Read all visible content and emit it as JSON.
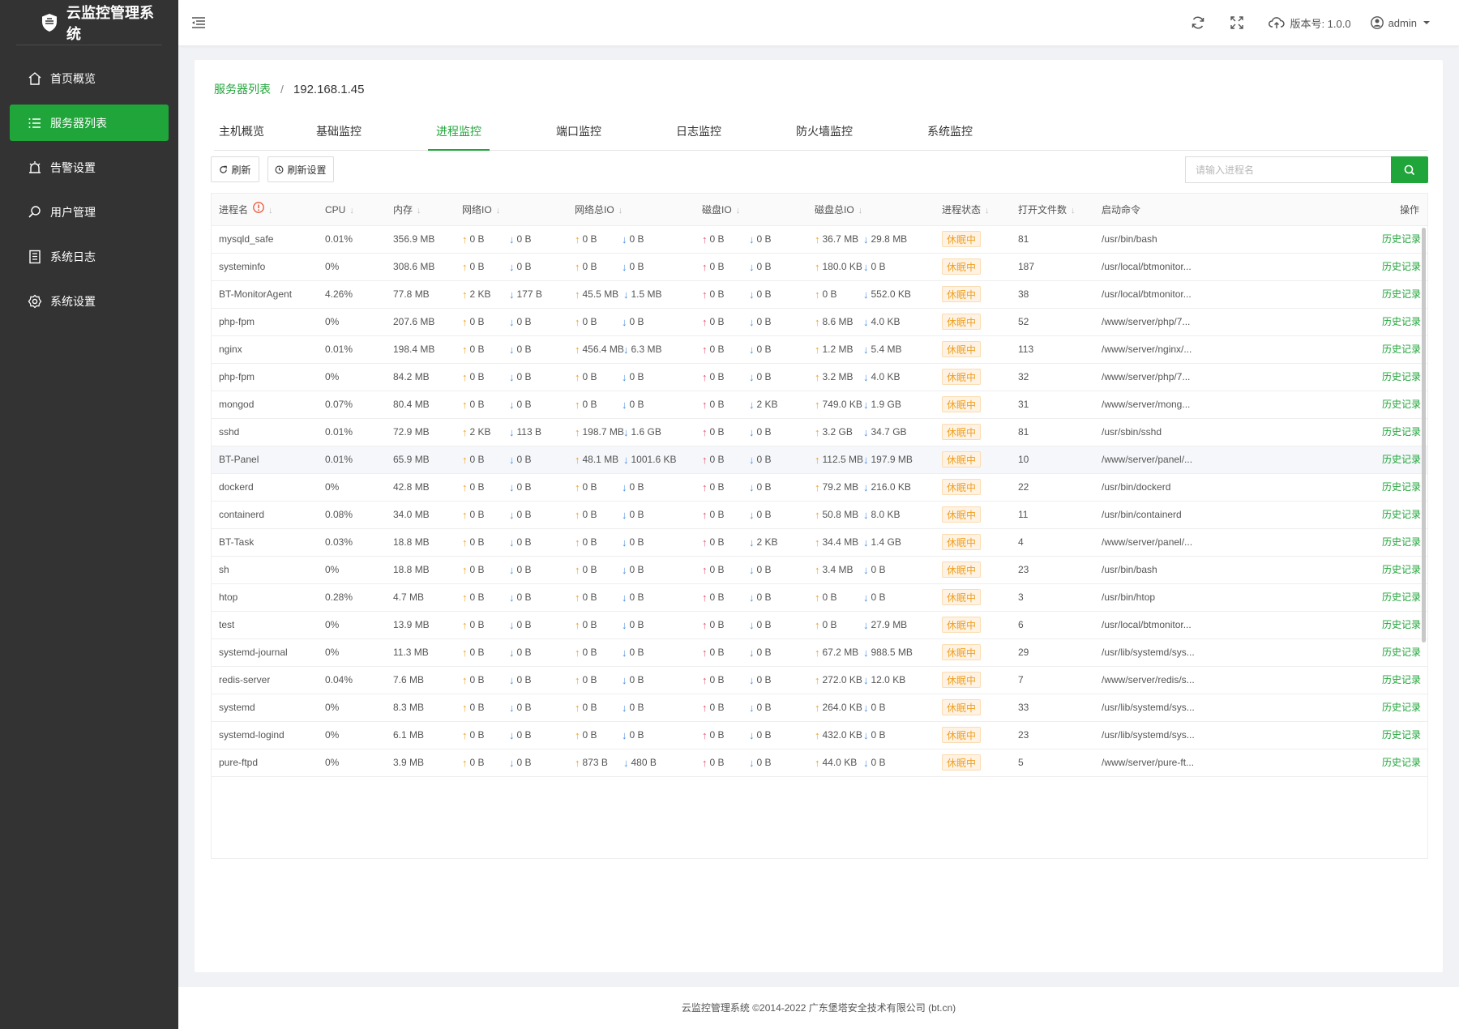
{
  "app": {
    "title": "云监控管理系统"
  },
  "sidebar": {
    "items": [
      {
        "label": "首页概览",
        "icon": "home-icon",
        "active": false
      },
      {
        "label": "服务器列表",
        "icon": "list-icon",
        "active": true
      },
      {
        "label": "告警设置",
        "icon": "alarm-icon",
        "active": false
      },
      {
        "label": "用户管理",
        "icon": "search-user-icon",
        "active": false
      },
      {
        "label": "系统日志",
        "icon": "log-icon",
        "active": false
      },
      {
        "label": "系统设置",
        "icon": "gear-icon",
        "active": false
      }
    ]
  },
  "header": {
    "version_label": "版本号: 1.0.0",
    "user": "admin"
  },
  "breadcrumb": {
    "parent": "服务器列表",
    "separator": "/",
    "current": "192.168.1.45"
  },
  "tabs": [
    {
      "label": "主机概览",
      "active": false
    },
    {
      "label": "基础监控",
      "active": false
    },
    {
      "label": "进程监控",
      "active": true
    },
    {
      "label": "端口监控",
      "active": false
    },
    {
      "label": "日志监控",
      "active": false
    },
    {
      "label": "防火墙监控",
      "active": false
    },
    {
      "label": "系统监控",
      "active": false
    }
  ],
  "toolbar": {
    "refresh_label": "刷新",
    "refresh_settings_label": "刷新设置",
    "search_placeholder": "请输入进程名"
  },
  "table": {
    "columns": [
      "进程名",
      "CPU",
      "内存",
      "网络IO",
      "网络总IO",
      "磁盘IO",
      "磁盘总IO",
      "进程状态",
      "打开文件数",
      "启动命令",
      "操作"
    ],
    "action_label": "历史记录",
    "rows": [
      {
        "name": "mysqld_safe",
        "cpu": "0.01%",
        "mem": "356.9 MB",
        "net_up": "0 B",
        "net_down": "0 B",
        "nett_up": "0 B",
        "nett_down": "0 B",
        "disk_up": "0 B",
        "disk_down": "0 B",
        "diskt_up": "36.7 MB",
        "diskt_down": "29.8 MB",
        "status": "休眠中",
        "files": "81",
        "cmd": "/usr/bin/bash"
      },
      {
        "name": "systeminfo",
        "cpu": "0%",
        "mem": "308.6 MB",
        "net_up": "0 B",
        "net_down": "0 B",
        "nett_up": "0 B",
        "nett_down": "0 B",
        "disk_up": "0 B",
        "disk_down": "0 B",
        "diskt_up": "180.0 KB",
        "diskt_down": "0 B",
        "status": "休眠中",
        "files": "187",
        "cmd": "/usr/local/btmonitor..."
      },
      {
        "name": "BT-MonitorAgent",
        "cpu": "4.26%",
        "mem": "77.8 MB",
        "net_up": "2 KB",
        "net_down": "177 B",
        "nett_up": "45.5 MB",
        "nett_down": "1.5 MB",
        "disk_up": "0 B",
        "disk_down": "0 B",
        "diskt_up": "0 B",
        "diskt_down": "552.0 KB",
        "status": "休眠中",
        "files": "38",
        "cmd": "/usr/local/btmonitor..."
      },
      {
        "name": "php-fpm",
        "cpu": "0%",
        "mem": "207.6 MB",
        "net_up": "0 B",
        "net_down": "0 B",
        "nett_up": "0 B",
        "nett_down": "0 B",
        "disk_up": "0 B",
        "disk_down": "0 B",
        "diskt_up": "8.6 MB",
        "diskt_down": "4.0 KB",
        "status": "休眠中",
        "files": "52",
        "cmd": "/www/server/php/7..."
      },
      {
        "name": "nginx",
        "cpu": "0.01%",
        "mem": "198.4 MB",
        "net_up": "0 B",
        "net_down": "0 B",
        "nett_up": "456.4 MB",
        "nett_down": "6.3 MB",
        "disk_up": "0 B",
        "disk_down": "0 B",
        "diskt_up": "1.2 MB",
        "diskt_down": "5.4 MB",
        "status": "休眠中",
        "files": "113",
        "cmd": "/www/server/nginx/..."
      },
      {
        "name": "php-fpm",
        "cpu": "0%",
        "mem": "84.2 MB",
        "net_up": "0 B",
        "net_down": "0 B",
        "nett_up": "0 B",
        "nett_down": "0 B",
        "disk_up": "0 B",
        "disk_down": "0 B",
        "diskt_up": "3.2 MB",
        "diskt_down": "4.0 KB",
        "status": "休眠中",
        "files": "32",
        "cmd": "/www/server/php/7..."
      },
      {
        "name": "mongod",
        "cpu": "0.07%",
        "mem": "80.4 MB",
        "net_up": "0 B",
        "net_down": "0 B",
        "nett_up": "0 B",
        "nett_down": "0 B",
        "disk_up": "0 B",
        "disk_down": "2 KB",
        "diskt_up": "749.0 KB",
        "diskt_down": "1.9 GB",
        "status": "休眠中",
        "files": "31",
        "cmd": "/www/server/mong..."
      },
      {
        "name": "sshd",
        "cpu": "0.01%",
        "mem": "72.9 MB",
        "net_up": "2 KB",
        "net_down": "113 B",
        "nett_up": "198.7 MB",
        "nett_down": "1.6 GB",
        "disk_up": "0 B",
        "disk_down": "0 B",
        "diskt_up": "3.2 GB",
        "diskt_down": "34.7 GB",
        "status": "休眠中",
        "files": "81",
        "cmd": "/usr/sbin/sshd"
      },
      {
        "name": "BT-Panel",
        "cpu": "0.01%",
        "mem": "65.9 MB",
        "net_up": "0 B",
        "net_down": "0 B",
        "nett_up": "48.1 MB",
        "nett_down": "1001.6 KB",
        "disk_up": "0 B",
        "disk_down": "0 B",
        "diskt_up": "112.5 MB",
        "diskt_down": "197.9 MB",
        "status": "休眠中",
        "files": "10",
        "cmd": "/www/server/panel/...",
        "highlight": true
      },
      {
        "name": "dockerd",
        "cpu": "0%",
        "mem": "42.8 MB",
        "net_up": "0 B",
        "net_down": "0 B",
        "nett_up": "0 B",
        "nett_down": "0 B",
        "disk_up": "0 B",
        "disk_down": "0 B",
        "diskt_up": "79.2 MB",
        "diskt_down": "216.0 KB",
        "status": "休眠中",
        "files": "22",
        "cmd": "/usr/bin/dockerd"
      },
      {
        "name": "containerd",
        "cpu": "0.08%",
        "mem": "34.0 MB",
        "net_up": "0 B",
        "net_down": "0 B",
        "nett_up": "0 B",
        "nett_down": "0 B",
        "disk_up": "0 B",
        "disk_down": "0 B",
        "diskt_up": "50.8 MB",
        "diskt_down": "8.0 KB",
        "status": "休眠中",
        "files": "11",
        "cmd": "/usr/bin/containerd"
      },
      {
        "name": "BT-Task",
        "cpu": "0.03%",
        "mem": "18.8 MB",
        "net_up": "0 B",
        "net_down": "0 B",
        "nett_up": "0 B",
        "nett_down": "0 B",
        "disk_up": "0 B",
        "disk_down": "2 KB",
        "diskt_up": "34.4 MB",
        "diskt_down": "1.4 GB",
        "status": "休眠中",
        "files": "4",
        "cmd": "/www/server/panel/..."
      },
      {
        "name": "sh",
        "cpu": "0%",
        "mem": "18.8 MB",
        "net_up": "0 B",
        "net_down": "0 B",
        "nett_up": "0 B",
        "nett_down": "0 B",
        "disk_up": "0 B",
        "disk_down": "0 B",
        "diskt_up": "3.4 MB",
        "diskt_down": "0 B",
        "status": "休眠中",
        "files": "23",
        "cmd": "/usr/bin/bash"
      },
      {
        "name": "htop",
        "cpu": "0.28%",
        "mem": "4.7 MB",
        "net_up": "0 B",
        "net_down": "0 B",
        "nett_up": "0 B",
        "nett_down": "0 B",
        "disk_up": "0 B",
        "disk_down": "0 B",
        "diskt_up": "0 B",
        "diskt_down": "0 B",
        "status": "休眠中",
        "files": "3",
        "cmd": "/usr/bin/htop"
      },
      {
        "name": "test",
        "cpu": "0%",
        "mem": "13.9 MB",
        "net_up": "0 B",
        "net_down": "0 B",
        "nett_up": "0 B",
        "nett_down": "0 B",
        "disk_up": "0 B",
        "disk_down": "0 B",
        "diskt_up": "0 B",
        "diskt_down": "27.9 MB",
        "status": "休眠中",
        "files": "6",
        "cmd": "/usr/local/btmonitor..."
      },
      {
        "name": "systemd-journal",
        "cpu": "0%",
        "mem": "11.3 MB",
        "net_up": "0 B",
        "net_down": "0 B",
        "nett_up": "0 B",
        "nett_down": "0 B",
        "disk_up": "0 B",
        "disk_down": "0 B",
        "diskt_up": "67.2 MB",
        "diskt_down": "988.5 MB",
        "status": "休眠中",
        "files": "29",
        "cmd": "/usr/lib/systemd/sys..."
      },
      {
        "name": "redis-server",
        "cpu": "0.04%",
        "mem": "7.6 MB",
        "net_up": "0 B",
        "net_down": "0 B",
        "nett_up": "0 B",
        "nett_down": "0 B",
        "disk_up": "0 B",
        "disk_down": "0 B",
        "diskt_up": "272.0 KB",
        "diskt_down": "12.0 KB",
        "status": "休眠中",
        "files": "7",
        "cmd": "/www/server/redis/s..."
      },
      {
        "name": "systemd",
        "cpu": "0%",
        "mem": "8.3 MB",
        "net_up": "0 B",
        "net_down": "0 B",
        "nett_up": "0 B",
        "nett_down": "0 B",
        "disk_up": "0 B",
        "disk_down": "0 B",
        "diskt_up": "264.0 KB",
        "diskt_down": "0 B",
        "status": "休眠中",
        "files": "33",
        "cmd": "/usr/lib/systemd/sys..."
      },
      {
        "name": "systemd-logind",
        "cpu": "0%",
        "mem": "6.1 MB",
        "net_up": "0 B",
        "net_down": "0 B",
        "nett_up": "0 B",
        "nett_down": "0 B",
        "disk_up": "0 B",
        "disk_down": "0 B",
        "diskt_up": "432.0 KB",
        "diskt_down": "0 B",
        "status": "休眠中",
        "files": "23",
        "cmd": "/usr/lib/systemd/sys..."
      },
      {
        "name": "pure-ftpd",
        "cpu": "0%",
        "mem": "3.9 MB",
        "net_up": "0 B",
        "net_down": "0 B",
        "nett_up": "873 B",
        "nett_down": "480 B",
        "disk_up": "0 B",
        "disk_down": "0 B",
        "diskt_up": "44.0 KB",
        "diskt_down": "0 B",
        "status": "休眠中",
        "files": "5",
        "cmd": "/www/server/pure-ft..."
      }
    ]
  },
  "footer": {
    "text": "云监控管理系统 ©2014-2022 广东堡塔安全技术有限公司 (bt.cn)"
  },
  "colors": {
    "brand": "#20a53a",
    "sidebar": "#333333",
    "warn": "#f0a020"
  }
}
